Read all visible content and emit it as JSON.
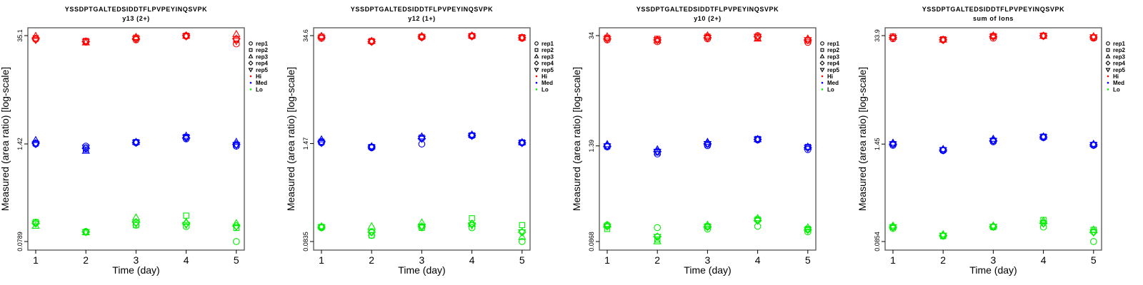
{
  "chart_data": [
    {
      "type": "scatter",
      "title": "YSSDPTGALTEDSIDDTFLPVPEYINQSVPK",
      "subtitle": "y13 (2+)",
      "xlabel": "Time (day)",
      "ylabel": "Measured (area ratio) [log-scale]",
      "x": [
        1,
        2,
        3,
        4,
        5
      ],
      "yscale": "log",
      "yticks": [
        "35.1",
        "1.42",
        "0.0789"
      ],
      "ytick_values": [
        35.1,
        1.42,
        0.0789
      ],
      "series": [
        {
          "name": "Hi",
          "values": [
            [
              31.5,
              32.5,
              34.5,
              32,
              31
            ],
            [
              29,
              30,
              28.5,
              29.5,
              29.5
            ],
            [
              31,
              33,
              33.5,
              32,
              32
            ],
            [
              34.5,
              35,
              34.8,
              35.1,
              34.5
            ],
            [
              27.5,
              31,
              36.5,
              32,
              30
            ]
          ]
        },
        {
          "name": "Med",
          "values": [
            [
              1.42,
              1.45,
              1.58,
              1.45,
              1.42
            ],
            [
              1.33,
              1.2,
              1.15,
              1.25,
              1.28
            ],
            [
              1.47,
              1.5,
              1.5,
              1.48,
              1.48
            ],
            [
              1.65,
              1.75,
              1.8,
              1.7,
              1.72
            ],
            [
              1.33,
              1.38,
              1.5,
              1.4,
              1.38
            ]
          ]
        },
        {
          "name": "Lo",
          "values": [
            [
              0.14,
              0.14,
              0.125,
              0.135,
              0.135
            ],
            [
              0.106,
              0.104,
              0.103,
              0.105,
              0.105
            ],
            [
              0.128,
              0.128,
              0.16,
              0.14,
              0.135
            ],
            [
              0.123,
              0.17,
              0.14,
              0.135,
              0.13
            ],
            [
              0.0789,
              0.118,
              0.135,
              0.125,
              0.122
            ]
          ]
        }
      ]
    },
    {
      "type": "scatter",
      "title": "YSSDPTGALTEDSIDDTFLPVPEYINQSVPK",
      "subtitle": "y12 (1+)",
      "xlabel": "Time (day)",
      "ylabel": "Measured (area ratio) [log-scale]",
      "x": [
        1,
        2,
        3,
        4,
        5
      ],
      "yscale": "log",
      "yticks": [
        "34.6",
        "1.47",
        "0.0835"
      ],
      "ytick_values": [
        34.6,
        1.47,
        0.0835
      ],
      "series": [
        {
          "name": "Hi",
          "values": [
            [
              32,
              33.5,
              34,
              33,
              32.5
            ],
            [
              29,
              29.5,
              29.5,
              29,
              29
            ],
            [
              33,
              33.5,
              34,
              33.5,
              33
            ],
            [
              34,
              34.3,
              34.6,
              34.3,
              34
            ],
            [
              32,
              33,
              32.5,
              32.5,
              32.5
            ]
          ]
        },
        {
          "name": "Med",
          "values": [
            [
              1.5,
              1.55,
              1.65,
              1.55,
              1.5
            ],
            [
              1.3,
              1.33,
              1.35,
              1.33,
              1.32
            ],
            [
              1.45,
              1.75,
              1.8,
              1.7,
              1.7
            ],
            [
              1.85,
              1.87,
              1.9,
              1.87,
              1.85
            ],
            [
              1.5,
              1.52,
              1.52,
              1.5,
              1.5
            ]
          ]
        },
        {
          "name": "Lo",
          "values": [
            [
              0.125,
              0.128,
              0.13,
              0.127,
              0.127
            ],
            [
              0.1,
              0.1,
              0.13,
              0.11,
              0.11
            ],
            [
              0.125,
              0.125,
              0.145,
              0.13,
              0.13
            ],
            [
              0.125,
              0.165,
              0.14,
              0.14,
              0.135
            ],
            [
              0.0835,
              0.135,
              0.095,
              0.11,
              0.11
            ]
          ]
        }
      ]
    },
    {
      "type": "scatter",
      "title": "YSSDPTGALTEDSIDDTFLPVPEYINQSVPK",
      "subtitle": "y10 (2+)",
      "xlabel": "Time (day)",
      "ylabel": "Measured (area ratio) [log-scale]",
      "x": [
        1,
        2,
        3,
        4,
        5
      ],
      "yscale": "log",
      "yticks": [
        "34",
        "1.39",
        "0.0868"
      ],
      "ytick_values": [
        34,
        1.39,
        0.0868
      ],
      "series": [
        {
          "name": "Hi",
          "values": [
            [
              30,
              32,
              33,
              31,
              31
            ],
            [
              28.5,
              31,
              29.5,
              30,
              30
            ],
            [
              31,
              33,
              34,
              32,
              32
            ],
            [
              34,
              32,
              31,
              33,
              33
            ],
            [
              28,
              29.5,
              31,
              30,
              30
            ]
          ]
        },
        {
          "name": "Med",
          "values": [
            [
              1.35,
              1.38,
              1.45,
              1.38,
              1.38
            ],
            [
              1.1,
              1.15,
              1.25,
              1.18,
              1.18
            ],
            [
              1.4,
              1.45,
              1.55,
              1.48,
              1.48
            ],
            [
              1.65,
              1.7,
              1.68,
              1.68,
              1.68
            ],
            [
              1.25,
              1.35,
              1.35,
              1.32,
              1.32
            ]
          ]
        },
        {
          "name": "Lo",
          "values": [
            [
              0.14,
              0.125,
              0.14,
              0.135,
              0.135
            ],
            [
              0.13,
              0.092,
              0.0868,
              0.1,
              0.1
            ],
            [
              0.125,
              0.135,
              0.14,
              0.133,
              0.133
            ],
            [
              0.135,
              0.165,
              0.17,
              0.16,
              0.16
            ],
            [
              0.115,
              0.125,
              0.13,
              0.122,
              0.122
            ]
          ]
        }
      ]
    },
    {
      "type": "scatter",
      "title": "YSSDPTGALTEDSIDDTFLPVPEYINQSVPK",
      "subtitle": "sum of Ions",
      "xlabel": "Time (day)",
      "ylabel": "Measured (area ratio) [log-scale]",
      "x": [
        1,
        2,
        3,
        4,
        5
      ],
      "yscale": "log",
      "yticks": [
        "33.9",
        "1.45",
        "0.0854"
      ],
      "ytick_values": [
        33.9,
        1.45,
        0.0854
      ],
      "series": [
        {
          "name": "Hi",
          "values": [
            [
              31,
              33,
              32.5,
              32,
              32
            ],
            [
              30,
              30.5,
              30,
              30,
              30
            ],
            [
              31.5,
              33.5,
              33.9,
              33,
              33
            ],
            [
              33.5,
              33.9,
              33.5,
              33.7,
              33.7
            ],
            [
              31.5,
              32,
              33,
              32.5,
              32.5
            ]
          ]
        },
        {
          "name": "Med",
          "values": [
            [
              1.4,
              1.45,
              1.5,
              1.45,
              1.45
            ],
            [
              1.2,
              1.22,
              1.25,
              1.22,
              1.22
            ],
            [
              1.55,
              1.6,
              1.68,
              1.6,
              1.6
            ],
            [
              1.75,
              1.8,
              1.8,
              1.78,
              1.78
            ],
            [
              1.4,
              1.42,
              1.45,
              1.42,
              1.42
            ]
          ]
        },
        {
          "name": "Lo",
          "values": [
            [
              0.125,
              0.13,
              0.135,
              0.13,
              0.13
            ],
            [
              0.1,
              0.1,
              0.105,
              0.102,
              0.102
            ],
            [
              0.13,
              0.13,
              0.135,
              0.132,
              0.132
            ],
            [
              0.13,
              0.16,
              0.155,
              0.145,
              0.145
            ],
            [
              0.0854,
              0.12,
              0.12,
              0.112,
              0.112
            ]
          ]
        }
      ]
    }
  ],
  "legend": {
    "placement": "right",
    "shapes": [
      {
        "label": "rep1",
        "shape": "circle"
      },
      {
        "label": "rep2",
        "shape": "square"
      },
      {
        "label": "rep3",
        "shape": "triangle-up"
      },
      {
        "label": "rep4",
        "shape": "diamond"
      },
      {
        "label": "rep5",
        "shape": "triangle-down"
      }
    ],
    "colors": [
      {
        "label": "Hi",
        "color": "#ff0000"
      },
      {
        "label": "Med",
        "color": "#0000ff"
      },
      {
        "label": "Lo",
        "color": "#00ee00"
      }
    ]
  }
}
